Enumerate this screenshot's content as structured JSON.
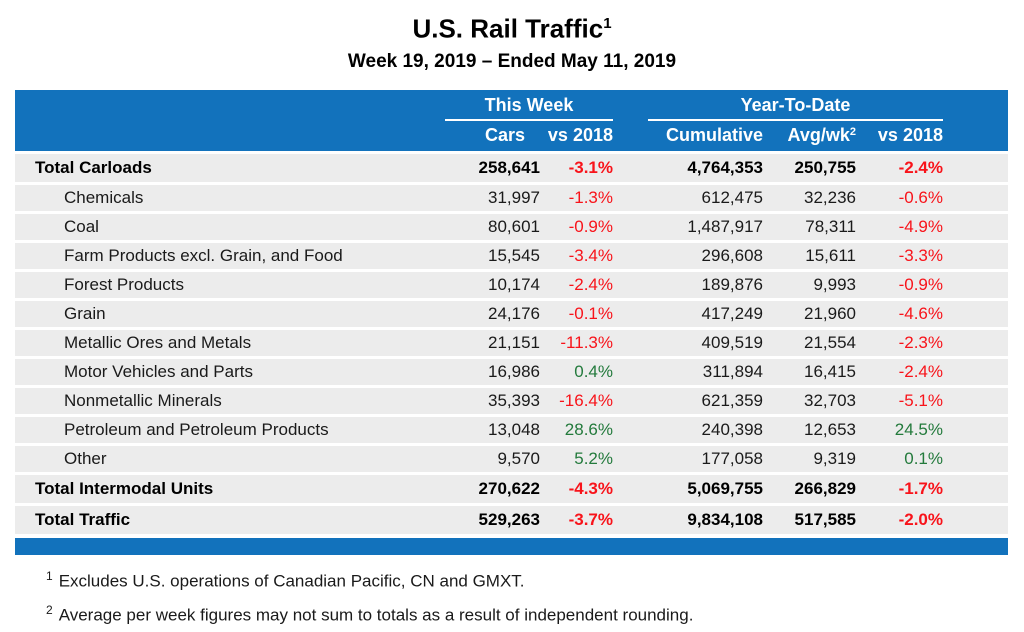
{
  "page": {
    "title": "U.S. Rail Traffic",
    "title_superscript": "1",
    "subtitle": "Week 19, 2019 – Ended May 11, 2019"
  },
  "colors": {
    "header_blue": "#1272BC",
    "row_gray": "#ECECEC",
    "negative_red": "#F8131A",
    "positive_green": "#237A3C"
  },
  "table": {
    "avg_wk_superscript": "2"
  },
  "chart_data": {
    "type": "table",
    "title": "U.S. Rail Traffic",
    "subtitle": "Week 19, 2019 – Ended May 11, 2019",
    "column_groups": [
      "This Week",
      "Year-To-Date"
    ],
    "columns": [
      "Cars",
      "vs 2018",
      "Cumulative",
      "Avg/wk",
      "vs 2018"
    ],
    "rows": [
      {
        "label": "Total Carloads",
        "is_total": true,
        "cars": "258,641",
        "cars_vs_2018": "-3.1%",
        "ytd_cumulative": "4,764,353",
        "ytd_avg_wk": "250,755",
        "ytd_vs_2018": "-2.4%"
      },
      {
        "label": "Chemicals",
        "is_total": false,
        "cars": "31,997",
        "cars_vs_2018": "-1.3%",
        "ytd_cumulative": "612,475",
        "ytd_avg_wk": "32,236",
        "ytd_vs_2018": "-0.6%"
      },
      {
        "label": "Coal",
        "is_total": false,
        "cars": "80,601",
        "cars_vs_2018": "-0.9%",
        "ytd_cumulative": "1,487,917",
        "ytd_avg_wk": "78,311",
        "ytd_vs_2018": "-4.9%"
      },
      {
        "label": "Farm Products excl. Grain, and Food",
        "is_total": false,
        "cars": "15,545",
        "cars_vs_2018": "-3.4%",
        "ytd_cumulative": "296,608",
        "ytd_avg_wk": "15,611",
        "ytd_vs_2018": "-3.3%"
      },
      {
        "label": "Forest Products",
        "is_total": false,
        "cars": "10,174",
        "cars_vs_2018": "-2.4%",
        "ytd_cumulative": "189,876",
        "ytd_avg_wk": "9,993",
        "ytd_vs_2018": "-0.9%"
      },
      {
        "label": "Grain",
        "is_total": false,
        "cars": "24,176",
        "cars_vs_2018": "-0.1%",
        "ytd_cumulative": "417,249",
        "ytd_avg_wk": "21,960",
        "ytd_vs_2018": "-4.6%"
      },
      {
        "label": "Metallic Ores and Metals",
        "is_total": false,
        "cars": "21,151",
        "cars_vs_2018": "-11.3%",
        "ytd_cumulative": "409,519",
        "ytd_avg_wk": "21,554",
        "ytd_vs_2018": "-2.3%"
      },
      {
        "label": "Motor Vehicles and Parts",
        "is_total": false,
        "cars": "16,986",
        "cars_vs_2018": "0.4%",
        "ytd_cumulative": "311,894",
        "ytd_avg_wk": "16,415",
        "ytd_vs_2018": "-2.4%"
      },
      {
        "label": "Nonmetallic Minerals",
        "is_total": false,
        "cars": "35,393",
        "cars_vs_2018": "-16.4%",
        "ytd_cumulative": "621,359",
        "ytd_avg_wk": "32,703",
        "ytd_vs_2018": "-5.1%"
      },
      {
        "label": "Petroleum and Petroleum Products",
        "is_total": false,
        "cars": "13,048",
        "cars_vs_2018": "28.6%",
        "ytd_cumulative": "240,398",
        "ytd_avg_wk": "12,653",
        "ytd_vs_2018": "24.5%"
      },
      {
        "label": "Other",
        "is_total": false,
        "cars": "9,570",
        "cars_vs_2018": "5.2%",
        "ytd_cumulative": "177,058",
        "ytd_avg_wk": "9,319",
        "ytd_vs_2018": "0.1%"
      },
      {
        "label": "Total Intermodal Units",
        "is_total": true,
        "cars": "270,622",
        "cars_vs_2018": "-4.3%",
        "ytd_cumulative": "5,069,755",
        "ytd_avg_wk": "266,829",
        "ytd_vs_2018": "-1.7%"
      },
      {
        "label": "Total Traffic",
        "is_total": true,
        "cars": "529,263",
        "cars_vs_2018": "-3.7%",
        "ytd_cumulative": "9,834,108",
        "ytd_avg_wk": "517,585",
        "ytd_vs_2018": "-2.0%"
      }
    ]
  },
  "footnotes": [
    {
      "marker": "1",
      "text": "Excludes U.S. operations of Canadian Pacific, CN and GMXT."
    },
    {
      "marker": "2",
      "text": "Average per week figures may not sum to totals as a result of independent rounding."
    }
  ]
}
